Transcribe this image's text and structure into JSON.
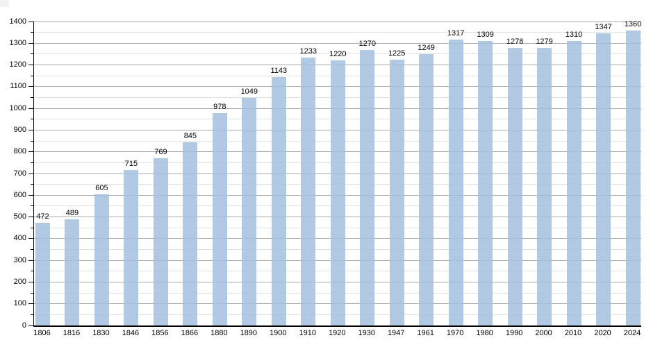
{
  "chart_data": {
    "type": "bar",
    "title": "",
    "xlabel": "",
    "ylabel": "",
    "categories": [
      "1806",
      "1816",
      "1830",
      "1846",
      "1856",
      "1866",
      "1880",
      "1890",
      "1900",
      "1910",
      "1920",
      "1930",
      "1947",
      "1961",
      "1970",
      "1980",
      "1990",
      "2000",
      "2010",
      "2020",
      "2024"
    ],
    "values": [
      472,
      489,
      605,
      715,
      769,
      845,
      978,
      1049,
      1143,
      1233,
      1220,
      1270,
      1225,
      1249,
      1317,
      1309,
      1278,
      1279,
      1310,
      1347,
      1360
    ],
    "data_labels": true,
    "ylim": [
      0,
      1400
    ],
    "y_major_step": 100,
    "y_minor_step": 50,
    "y_tick_labels": [
      "0",
      "100",
      "200",
      "300",
      "400",
      "500",
      "600",
      "700",
      "800",
      "900",
      "1000",
      "1100",
      "1200",
      "1300",
      "1400"
    ],
    "grid": "on",
    "legend": "none",
    "colors": {
      "bar_fill": "#a3c0de",
      "bar_opacity": 0.85,
      "major_gridline": "#a9a9a9",
      "minor_gridline": "#e0e0e0",
      "axis": "#000000",
      "text": "#000000",
      "background": "#ffffff"
    }
  }
}
